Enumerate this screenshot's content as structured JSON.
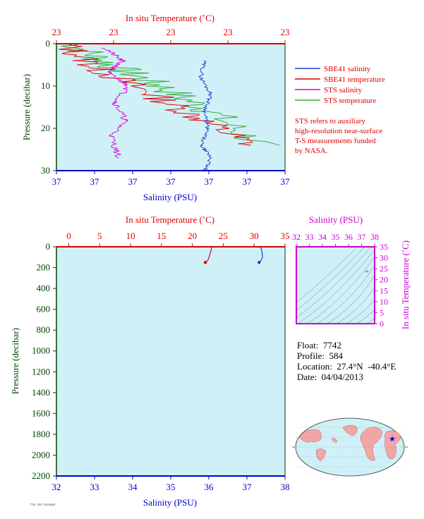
{
  "colors": {
    "salinity_axis": "#0000cc",
    "temperature_axis": "#dd0000",
    "pressure_axis": "#004400",
    "plot_bg": "#cff0f7",
    "sbe41_salinity": "#1a3fcc",
    "sbe41_temperature": "#dd0000",
    "sts_salinity": "#dd00dd",
    "sts_temperature": "#33aa33",
    "ts_axis": "#cc00cc"
  },
  "legend": {
    "sbe41_salinity": "SBE41 salinity",
    "sbe41_temperature": "SBE41 temperature",
    "sts_salinity": "STS salinity",
    "sts_temperature": "STS temperature"
  },
  "note": [
    "STS refers to auxiliary",
    "high-resolution near-surface",
    "T-S measurements funded",
    "by NASA."
  ],
  "info": {
    "float": "Float:  7742",
    "profile": "Profile:  584",
    "location": "Location:  27.4°N  -40.4°E",
    "date": "Date:  04/04/2013"
  },
  "tiny_label": "7742 / 584 / 20130404",
  "chart_data": [
    {
      "type": "line",
      "id": "near-surface-profile",
      "title": "In situ Temperature (˚C)",
      "xlabel": "Salinity (PSU)",
      "ylabel": "Pressure (decibar)",
      "top_xlabel": "In situ Temperature (˚C)",
      "salinity_ticks": [
        "37",
        "37",
        "37",
        "37",
        "37",
        "37",
        "37"
      ],
      "temperature_ticks": [
        "23",
        "23",
        "23",
        "23",
        "23"
      ],
      "pressure_ticks": [
        "0",
        "10",
        "20",
        "30"
      ],
      "ylim": [
        30,
        0
      ],
      "series": [
        {
          "name": "SBE41 salinity",
          "x": [
            37.34,
            37.33,
            37.36,
            37.34,
            37.35,
            37.33,
            37.36,
            37.34
          ],
          "y": [
            4,
            8,
            12,
            16,
            20,
            24,
            27,
            30
          ]
        },
        {
          "name": "SBE41 temperature",
          "x": [
            22.97,
            23.05,
            23.18,
            23.3,
            23.42
          ],
          "y": [
            0,
            6,
            12,
            18,
            24
          ]
        },
        {
          "name": "STS salinity",
          "x": [
            37.05,
            37.1,
            37.06,
            37.12,
            37.08,
            37.11,
            37.07,
            37.09
          ],
          "y": [
            1,
            4,
            7,
            10,
            14,
            18,
            22,
            27
          ]
        },
        {
          "name": "STS temperature",
          "x": [
            22.99,
            23.08,
            23.2,
            23.32,
            23.44
          ],
          "y": [
            0,
            5,
            10,
            16,
            24
          ]
        }
      ]
    },
    {
      "type": "line",
      "id": "full-depth-profile",
      "title": "In situ Temperature (˚C)",
      "xlabel": "Salinity (PSU)",
      "ylabel": "Pressure (decibar)",
      "top_xlabel": "In situ Temperature (˚C)",
      "salinity_ticks": [
        "32",
        "33",
        "34",
        "35",
        "36",
        "37",
        "38"
      ],
      "temperature_ticks": [
        "0",
        "5",
        "10",
        "15",
        "20",
        "25",
        "30",
        "35"
      ],
      "pressure_ticks": [
        "0",
        "200",
        "400",
        "600",
        "800",
        "1000",
        "1200",
        "1400",
        "1600",
        "1800",
        "2000",
        "2200"
      ],
      "xlim_salinity": [
        32,
        38
      ],
      "xlim_temperature": [
        -2,
        35
      ],
      "ylim": [
        2200,
        0
      ],
      "series": [
        {
          "name": "SBE41 salinity",
          "x": [
            37.35,
            37.38,
            37.4,
            37.41,
            37.37,
            37.32
          ],
          "y": [
            0,
            20,
            60,
            100,
            130,
            150
          ]
        },
        {
          "name": "SBE41 temperature",
          "x": [
            23.0,
            23.1,
            22.9,
            22.7,
            22.5,
            22.1
          ],
          "y": [
            0,
            20,
            60,
            100,
            130,
            150
          ]
        }
      ]
    },
    {
      "type": "scatter",
      "id": "ts-diagram",
      "title": "Salinity (PSU)",
      "xlabel": "Salinity (PSU)",
      "ylabel": "In situ Temperature (˚C)",
      "salinity_ticks": [
        "32",
        "33",
        "34",
        "35",
        "36",
        "37",
        "38"
      ],
      "temperature_ticks": [
        "0",
        "5",
        "10",
        "15",
        "20",
        "25",
        "30",
        "35"
      ],
      "xlim": [
        32,
        38
      ],
      "ylim": [
        0,
        35
      ],
      "points": [
        {
          "x": 37.4,
          "y": 23.1
        }
      ]
    }
  ]
}
